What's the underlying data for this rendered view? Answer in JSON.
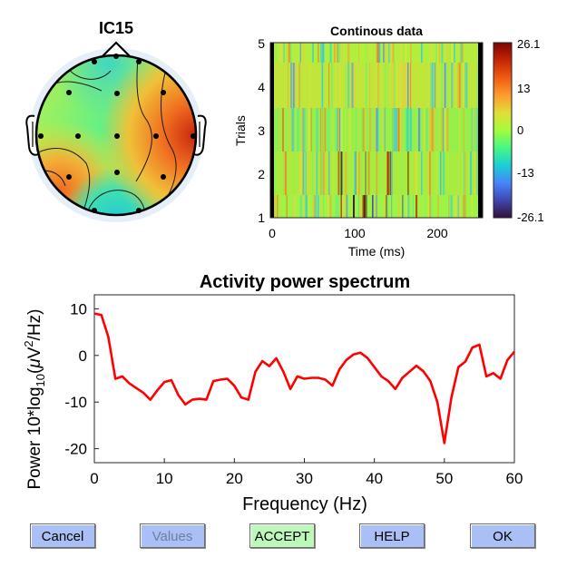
{
  "topo": {
    "title": "IC15"
  },
  "erpimage": {
    "title": "Continous data",
    "xlabel": "Time (ms)",
    "ylabel": "Trials",
    "xticks": [
      "0",
      "100",
      "200"
    ],
    "yticks": [
      "1",
      "2",
      "3",
      "4",
      "5"
    ],
    "colorbar_ticks": [
      "26.1",
      "13",
      "0",
      "-13",
      "-26.1"
    ]
  },
  "chart_data": {
    "type": "line",
    "title": "Activity power spectrum",
    "xlabel": "Frequency (Hz)",
    "ylabel": "Power 10*log10(μV²/Hz)",
    "xlim": [
      0,
      60
    ],
    "ylim": [
      -23,
      13
    ],
    "xticks": [
      0,
      10,
      20,
      30,
      40,
      50,
      60
    ],
    "yticks": [
      10,
      0,
      -10,
      -20
    ],
    "series": [
      {
        "color": "#ff0000",
        "x": [
          0,
          1,
          2,
          3,
          4,
          5,
          6,
          7,
          8,
          9,
          10,
          11,
          12,
          13,
          14,
          15,
          16,
          17,
          18,
          19,
          20,
          21,
          22,
          23,
          24,
          25,
          26,
          27,
          28,
          29,
          30,
          31,
          32,
          33,
          34,
          35,
          36,
          37,
          38,
          39,
          40,
          41,
          42,
          43,
          44,
          45,
          46,
          47,
          48,
          49,
          50,
          51,
          52,
          53,
          54,
          55,
          56,
          57,
          58,
          59,
          60
        ],
        "y": [
          9,
          8.7,
          4,
          -5,
          -4.5,
          -6,
          -7,
          -8,
          -9.5,
          -7.5,
          -5.7,
          -5.3,
          -8.5,
          -10.5,
          -9.5,
          -9.3,
          -9.5,
          -5.5,
          -5.2,
          -5,
          -6.5,
          -9,
          -9.5,
          -3.5,
          -1.2,
          -2.3,
          -0.6,
          -3.5,
          -7.2,
          -4.5,
          -5,
          -4.8,
          -4.8,
          -5.2,
          -6.5,
          -3,
          -1,
          0.2,
          0.6,
          -0.5,
          -2.5,
          -4.5,
          -5.5,
          -7.2,
          -4.8,
          -3.5,
          -2.2,
          -3.4,
          -5.5,
          -10,
          -18.8,
          -9,
          -2.5,
          -1.3,
          1.7,
          2.3,
          -4.5,
          -3.8,
          -5,
          -1,
          0.8
        ]
      }
    ]
  },
  "buttons": {
    "cancel": "Cancel",
    "values": "Values",
    "accept": "ACCEPT",
    "help": "HELP",
    "ok": "OK"
  }
}
